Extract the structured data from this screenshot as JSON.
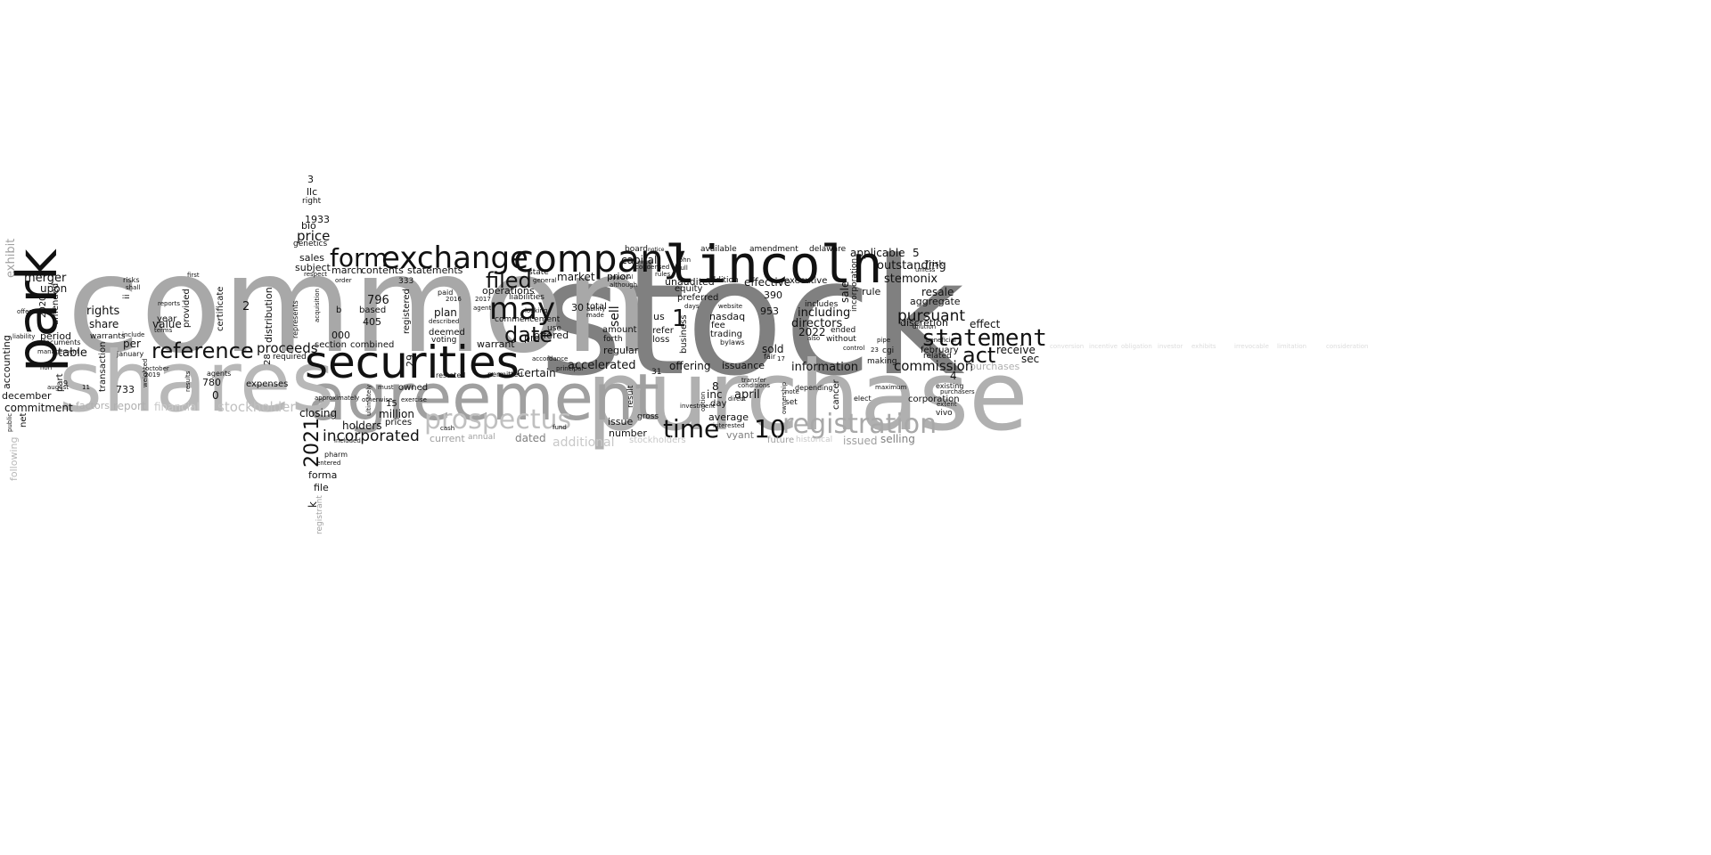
{
  "palette": {
    "black": "#111111",
    "dark": "#808080",
    "mid": "#a8a8a8",
    "light": "#c8c8c8",
    "pale": "#dcdcdc"
  },
  "words": {
    "stock": "stock",
    "common": "common",
    "purchase": "purchase",
    "agreement": "agreement",
    "shares": "shares",
    "park": "park",
    "lincoln": "lincoln",
    "securities": "securities",
    "company": "company",
    "exchange": "exchange",
    "form": "form",
    "registration": "registration",
    "prospectus": "prospectus",
    "statement": "statement",
    "may": "may",
    "reference": "reference",
    "time": "time",
    "filed": "filed",
    "date": "date",
    "act": "act",
    "ten": "10",
    "one": "1",
    "2021": "2021",
    "incorporated": "incorporated",
    "proceeds": "proceeds",
    "commission": "commission",
    "pursuant": "pursuant",
    "outstanding": "outstanding",
    "stemonix": "stemonix",
    "including": "including",
    "directors": "directors",
    "information": "information",
    "offering": "offering",
    "accelerated": "accelerated",
    "sell": "sell",
    "merger": "merger",
    "rights": "rights",
    "share": "share",
    "table": "table",
    "value": "value",
    "price": "price",
    "sales": "sales",
    "subject": "subject",
    "march": "march",
    "contents": "contents",
    "statements": "statements",
    "combined": "combined",
    "section": "section",
    "applicable": "applicable",
    "delaware": "delaware",
    "amendment": "amendment",
    "available": "available",
    "board": "board",
    "capital": "capital",
    "market": "market",
    "prior": "prior",
    "plan": "plan",
    "operations": "operations",
    "warrant": "warrant",
    "offered": "offered",
    "effective": "effective",
    "executive": "executive",
    "unaudited": "unaudited",
    "addition": "addition",
    "equity": "equity",
    "preferred": "preferred",
    "nasdaq": "nasdaq",
    "fee": "fee",
    "trading": "trading",
    "bylaws": "bylaws",
    "business": "business",
    "us": "us",
    "refer": "refer",
    "loss": "loss",
    "issuance": "issuance",
    "april": "april",
    "inc": "inc",
    "day": "day",
    "average": "average",
    "vyant": "vyant",
    "future": "future",
    "historical": "historical",
    "issued": "issued",
    "selling": "selling",
    "corporation": "corporation",
    "existing": "existing",
    "sec": "sec",
    "receive": "receive",
    "effect": "effect",
    "resale": "resale",
    "aggregate": "aggregate",
    "february": "february",
    "related": "related",
    "discretion": "discretion",
    "ended": "ended",
    "includes": "includes",
    "without": "without",
    "sale": "sale",
    "incorporation": "incorporation",
    "cancer": "cancer",
    "depending": "depending",
    "purchases": "purchases",
    "stockholders": "stockholders",
    "additional": "additional",
    "number": "number",
    "dated": "dated",
    "current": "current",
    "annual": "annual",
    "issue": "issue",
    "regular": "regular",
    "amount": "amount",
    "result": "result",
    "gross": "gross",
    "certain": "Certain",
    "million": "million",
    "prices": "prices",
    "holders": "holders",
    "closing": "closing",
    "stockholder": "stockholder",
    "financial": "financial",
    "report": "report",
    "factors": "factors",
    "expenses": "expenses",
    "agents": "agents",
    "commitment": "commitment",
    "december": "december",
    "period": "period",
    "accounting": "accounting",
    "exhibit": "exhibit",
    "following": "following",
    "documents": "documents",
    "amended": "amended",
    "upon": "upon",
    "per": "per",
    "january": "january",
    "year": "year",
    "provided": "provided",
    "certificate": "certificate",
    "distribution": "distribution",
    "transaction": "transaction",
    "required": "required",
    "registered": "registered",
    "based": "based",
    "bio": "bio",
    "genetics": "genetics",
    "llc": "llc",
    "right": "right",
    "1933": "1933",
    "forma": "forma",
    "file": "file",
    "registrant": "registrant",
    "pharm": "pharm",
    "entered": "entered",
    "included": "included",
    "deemed": "deemed",
    "voting": "voting",
    "paid": "paid",
    "total": "total",
    "commencement": "commencement",
    "state": "state",
    "liabilities": "liabilities",
    "forth": "forth",
    "website": "website",
    "sold": "sold",
    "pro": "pro",
    "mo": "796",
    "n405": "405",
    "n000": "000",
    "nb": "b",
    "n333": "333",
    "n29": "29",
    "n15": "15",
    "n780": "780",
    "n733": "733",
    "n0": "0",
    "n2": "2",
    "n28": "28",
    "n30": "30",
    "n8": "8",
    "n4": "4",
    "n5": "5",
    "n953": "953",
    "n390": "390",
    "n2022": "2022",
    "n2020": "2020",
    "n3": "3",
    "nk": "k",
    "n31": "31",
    "n17": "17",
    "n23": "23",
    "cgi": "cgi",
    "risk": "7risk",
    "rule": "rule",
    "making": "making",
    "vivo": "vivo",
    "owned": "owned",
    "exercise": "exercise",
    "otherwise": "otherwise",
    "ultimately": "ultimately",
    "approximately": "approximately",
    "represents": "represents",
    "acquisition": "acquisition",
    "weighted": "weighted",
    "risks": "risks",
    "shall": "shall",
    "warrants": "warrants",
    "net": "net",
    "part": "part",
    "ii": "ii",
    "n9": "9",
    "n11": "11",
    "august": "august",
    "restated": "restated",
    "permitted": "permitted",
    "accordance": "accordance",
    "john": "john",
    "full": "full",
    "days": "days",
    "option": "option",
    "interested": "interested",
    "transfer": "transfer",
    "elect": "elect",
    "maximum": "maximum",
    "dilution": "dilution",
    "beneficial": "beneficial",
    "unless": "unless",
    "pipe": "pipe",
    "control": "control",
    "fair": "fair",
    "ownership": "ownership",
    "note": "note",
    "set": "set",
    "investor": "investor",
    "exhibits": "exhibits",
    "irrevocable": "irrevocable",
    "limitation": "limitation",
    "consideration": "consideration",
    "conversion": "conversion",
    "incentive": "incentive",
    "obligation": "obligation",
    "also": "also",
    "made": "made",
    "ability": "ability",
    "looking": "looking",
    "use": "use",
    "agent": "agent",
    "described": "described",
    "cash": "cash",
    "fund": "fund",
    "conditions": "conditions",
    "direct": "direct",
    "terms": "terms",
    "reports": "reports",
    "first": "first",
    "management": "management",
    "non": "non",
    "offer": "offer",
    "liability": "liability",
    "public": "public",
    "include": "include",
    "n2016": "2016",
    "n2017": "2017",
    "n2019": "2019",
    "october": "october",
    "must": "must",
    "results": "results",
    "respect": "respect",
    "order": "order",
    "general": "general",
    "principal": "principal",
    "although": "although",
    "approval": "approval",
    "condensed": "condensed",
    "rules": "rules",
    "notice": "notice",
    "investment": "investment",
    "purchasers": "purchasers",
    "extent": "extent"
  }
}
